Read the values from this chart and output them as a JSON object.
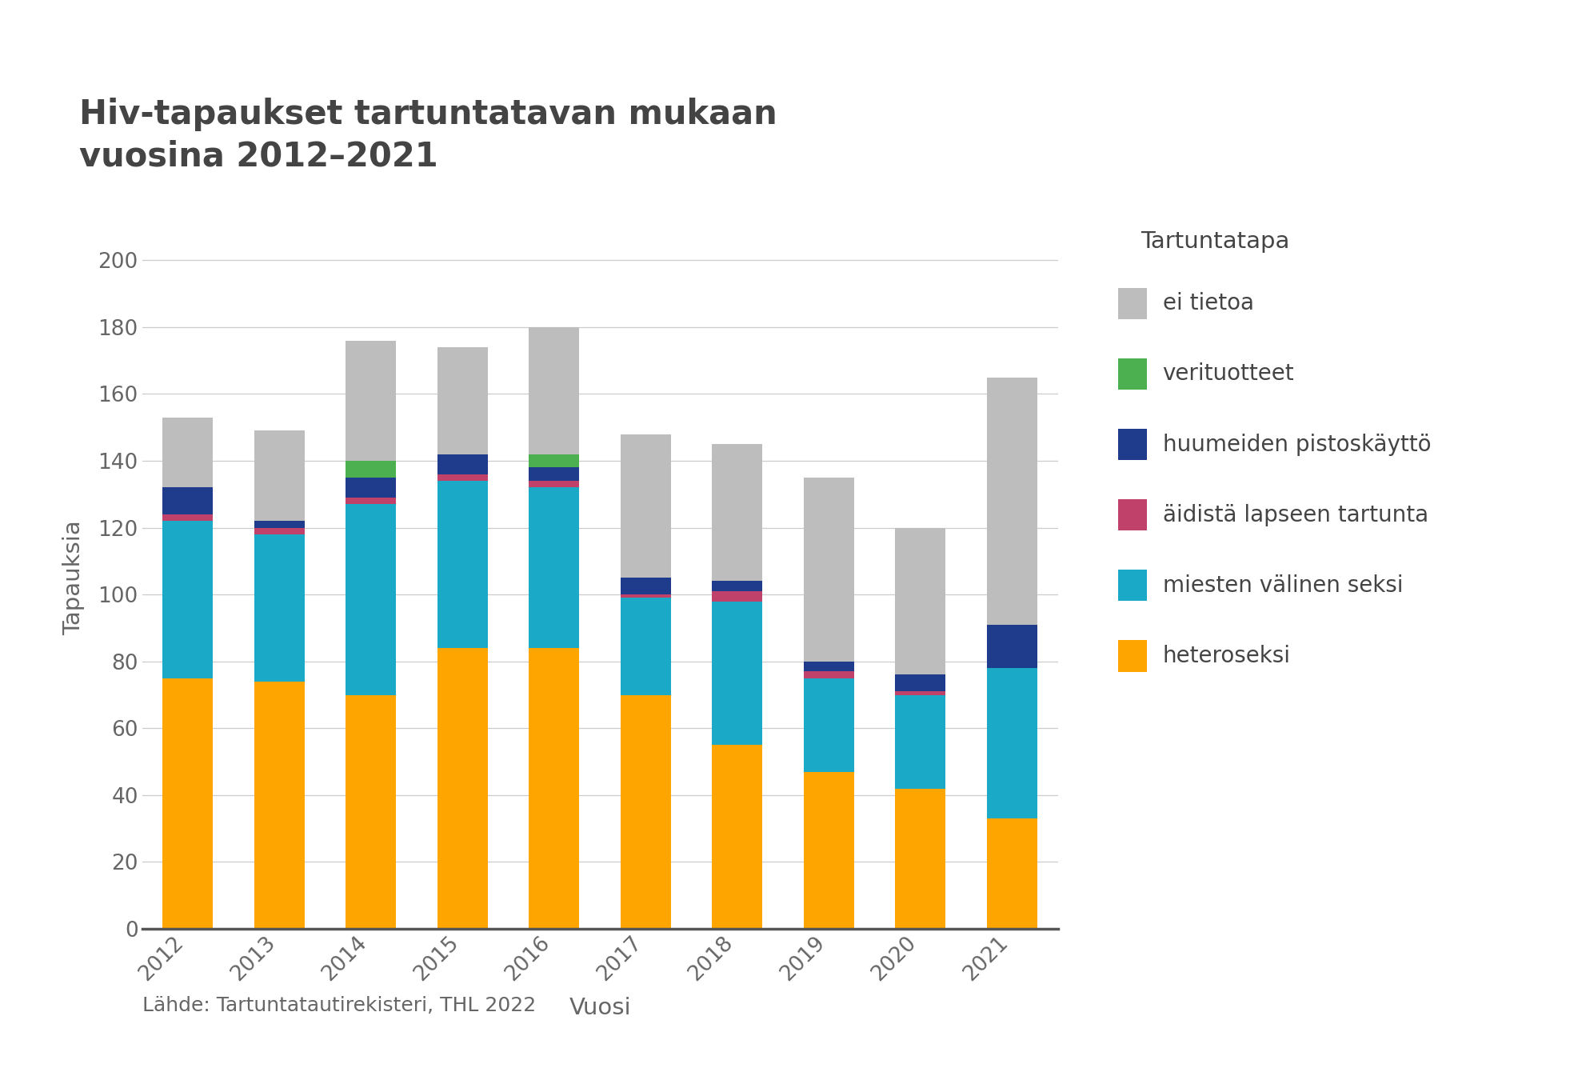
{
  "years": [
    2012,
    2013,
    2014,
    2015,
    2016,
    2017,
    2018,
    2019,
    2020,
    2021
  ],
  "title": "Hiv-tapaukset tartuntatavan mukaan\nvuosina 2012–2021",
  "xlabel": "Vuosi",
  "ylabel": "Tapauksia",
  "subtitle": "Lähde: Tartuntatautirekisteri, THL 2022",
  "legend_title": "Tartuntatapa",
  "categories": [
    "heteroseksi",
    "miesten välinen seksi",
    "äidistä lapseen tartunta",
    "huumeiden pistoskäyttö",
    "verituotteet",
    "ei tietoa"
  ],
  "colors": [
    "#FFA500",
    "#1AAAC8",
    "#C0426A",
    "#1F3B8C",
    "#4CAF50",
    "#BDBDBD"
  ],
  "data": {
    "heteroseksi": [
      75,
      74,
      70,
      84,
      84,
      70,
      55,
      47,
      42,
      33
    ],
    "miesten välinen seksi": [
      47,
      44,
      57,
      50,
      48,
      29,
      43,
      28,
      28,
      45
    ],
    "äidistä lapseen tartunta": [
      2,
      2,
      2,
      2,
      2,
      1,
      3,
      2,
      1,
      0
    ],
    "huumeiden pistoskäyttö": [
      8,
      2,
      6,
      6,
      4,
      5,
      3,
      3,
      5,
      13
    ],
    "verituotteet": [
      0,
      0,
      5,
      0,
      4,
      0,
      0,
      0,
      0,
      0
    ],
    "ei tietoa": [
      21,
      27,
      36,
      32,
      38,
      43,
      41,
      55,
      44,
      74
    ]
  },
  "ylim": [
    0,
    210
  ],
  "yticks": [
    0,
    20,
    40,
    60,
    80,
    100,
    120,
    140,
    160,
    180,
    200
  ],
  "background_color": "#FFFFFF",
  "bar_width": 0.55,
  "title_fontsize": 30,
  "axis_fontsize": 21,
  "tick_fontsize": 19,
  "legend_fontsize": 20,
  "subtitle_fontsize": 18
}
